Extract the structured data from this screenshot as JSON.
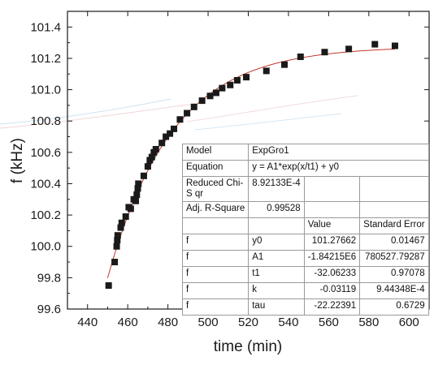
{
  "chart_data": {
    "type": "scatter",
    "xlabel": "time (min)",
    "ylabel": "f (kHz)",
    "xlim": [
      430,
      610
    ],
    "ylim": [
      99.6,
      101.5
    ],
    "xticks": [
      440,
      460,
      480,
      500,
      520,
      540,
      560,
      580,
      600
    ],
    "yticks": [
      99.6,
      99.8,
      100.0,
      100.2,
      100.4,
      100.6,
      100.8,
      101.0,
      101.2,
      101.4
    ],
    "xtick_labels": [
      "440",
      "460",
      "480",
      "500",
      "520",
      "540",
      "560",
      "580",
      "600"
    ],
    "ytick_labels": [
      "99.6",
      "99.8",
      "100.0",
      "100.2",
      "100.4",
      "100.6",
      "100.8",
      "101.0",
      "101.2",
      "101.4"
    ],
    "grid": false,
    "colors": {
      "marker": "#1a1a1a",
      "fit_line": "#c0392b",
      "axis": "#1a1a1a"
    },
    "points": [
      [
        450.5,
        99.75
      ],
      [
        453.5,
        99.9
      ],
      [
        454.5,
        100.0
      ],
      [
        454.8,
        100.04
      ],
      [
        455.0,
        100.07
      ],
      [
        456.5,
        100.12
      ],
      [
        457.0,
        100.15
      ],
      [
        459.0,
        100.19
      ],
      [
        460.5,
        100.25
      ],
      [
        461.5,
        100.24
      ],
      [
        463.0,
        100.3
      ],
      [
        464.0,
        100.29
      ],
      [
        464.5,
        100.33
      ],
      [
        465.0,
        100.37
      ],
      [
        465.3,
        100.4
      ],
      [
        468.0,
        100.45
      ],
      [
        470.0,
        100.51
      ],
      [
        471.0,
        100.55
      ],
      [
        472.0,
        100.57
      ],
      [
        473.0,
        100.6
      ],
      [
        474.0,
        100.62
      ],
      [
        477.0,
        100.66
      ],
      [
        479.0,
        100.7
      ],
      [
        481.0,
        100.72
      ],
      [
        483.0,
        100.75
      ],
      [
        486.0,
        100.81
      ],
      [
        489.5,
        100.85
      ],
      [
        493.0,
        100.89
      ],
      [
        497.0,
        100.93
      ],
      [
        501.0,
        100.96
      ],
      [
        504.0,
        100.98
      ],
      [
        507.0,
        101.01
      ],
      [
        511.0,
        101.03
      ],
      [
        514.5,
        101.06
      ],
      [
        519.0,
        101.08
      ],
      [
        529.0,
        101.12
      ],
      [
        538.0,
        101.16
      ],
      [
        546.0,
        101.21
      ],
      [
        558.0,
        101.24
      ],
      [
        570.0,
        101.26
      ],
      [
        583.0,
        101.29
      ],
      [
        593.0,
        101.28
      ]
    ],
    "fit": {
      "equation_type": "exponential_growth",
      "y0": 101.27662,
      "A1": -1842150,
      "t1": -32.06233,
      "x_range": [
        450,
        593
      ]
    }
  },
  "fit_table": {
    "model_label": "Model",
    "model_value": "ExpGro1",
    "equation_label": "Equation",
    "equation_value": "y = A1*exp(x/t1) + y0",
    "chisq_label": "Reduced Chi-S qr",
    "chisq_value": "8.92133E-4",
    "r2_label": "Adj. R-Square",
    "r2_value": "0.99528",
    "value_header": "Value",
    "error_header": "Standard Error",
    "rows": [
      {
        "dep": "f",
        "param": "y0",
        "value": "101.27662",
        "error": "0.01467"
      },
      {
        "dep": "f",
        "param": "A1",
        "value": "-1.84215E6",
        "error": "780527.79287"
      },
      {
        "dep": "f",
        "param": "t1",
        "value": "-32.06233",
        "error": "0.97078"
      },
      {
        "dep": "f",
        "param": "k",
        "value": "-0.03119",
        "error": "9.44348E-4"
      },
      {
        "dep": "f",
        "param": "tau",
        "value": "-22.22391",
        "error": "0.6729"
      }
    ]
  }
}
